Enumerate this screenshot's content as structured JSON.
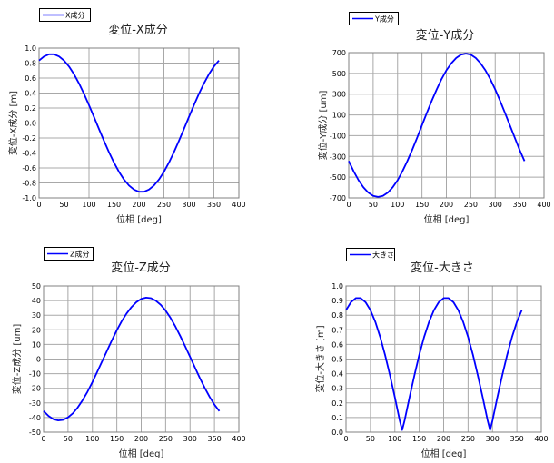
{
  "chart_data": [
    {
      "type": "line",
      "title": "変位-X成分",
      "xlabel": "位相 [deg]",
      "ylabel": "変位-X成分 [m]",
      "xlim": [
        0,
        400
      ],
      "ylim": [
        -1.0,
        1.0
      ],
      "xticks": [
        "0",
        "50",
        "100",
        "150",
        "200",
        "250",
        "300",
        "350",
        "400"
      ],
      "yticks": [
        "1.0",
        "0.8",
        "0.6",
        "0.4",
        "0.2",
        "0.0",
        "-0.2",
        "-0.4",
        "-0.6",
        "-0.8",
        "-1.0"
      ],
      "grid": true,
      "legend_placement": "top-left",
      "series": [
        {
          "name": "X成分",
          "color": "#0000ff",
          "x": [
            0,
            10,
            20,
            30,
            40,
            50,
            60,
            70,
            80,
            90,
            100,
            110,
            120,
            130,
            140,
            150,
            160,
            170,
            180,
            190,
            200,
            210,
            220,
            230,
            240,
            250,
            260,
            270,
            280,
            290,
            300,
            310,
            320,
            330,
            340,
            350,
            360
          ],
          "y": [
            0.834,
            0.889,
            0.917,
            0.917,
            0.889,
            0.834,
            0.754,
            0.651,
            0.528,
            0.389,
            0.238,
            0.08,
            -0.08,
            -0.238,
            -0.389,
            -0.528,
            -0.651,
            -0.754,
            -0.834,
            -0.889,
            -0.917,
            -0.917,
            -0.889,
            -0.834,
            -0.754,
            -0.651,
            -0.528,
            -0.389,
            -0.238,
            -0.08,
            0.08,
            0.238,
            0.389,
            0.528,
            0.651,
            0.754,
            0.834
          ]
        }
      ]
    },
    {
      "type": "line",
      "title": "変位-Y成分",
      "xlabel": "位相 [deg]",
      "ylabel": "変位-Y成分 [um]",
      "xlim": [
        0,
        400
      ],
      "ylim": [
        -700,
        700
      ],
      "xticks": [
        "0",
        "50",
        "100",
        "150",
        "200",
        "250",
        "300",
        "350",
        "400"
      ],
      "yticks": [
        "700",
        "500",
        "300",
        "100",
        "-100",
        "-300",
        "-500",
        "-700"
      ],
      "grid": true,
      "legend_placement": "top-left",
      "series": [
        {
          "name": "Y成分",
          "color": "#0000ff",
          "x": [
            0,
            10,
            20,
            30,
            40,
            50,
            60,
            70,
            80,
            90,
            100,
            110,
            120,
            130,
            140,
            150,
            160,
            170,
            180,
            190,
            200,
            210,
            220,
            230,
            240,
            250,
            260,
            270,
            280,
            290,
            300,
            310,
            320,
            330,
            340,
            350,
            360
          ],
          "y": [
            -345,
            -444,
            -529,
            -598,
            -648,
            -680,
            -690,
            -680,
            -648,
            -598,
            -529,
            -444,
            -345,
            -236,
            -120,
            0,
            120,
            236,
            345,
            444,
            529,
            598,
            648,
            680,
            690,
            680,
            648,
            598,
            529,
            444,
            345,
            236,
            120,
            0,
            -120,
            -236,
            -345
          ]
        }
      ]
    },
    {
      "type": "line",
      "title": "変位-Z成分",
      "xlabel": "位相 [deg]",
      "ylabel": "変位-Z成分 [um]",
      "xlim": [
        0,
        400
      ],
      "ylim": [
        -50,
        50
      ],
      "xticks": [
        "0",
        "50",
        "100",
        "150",
        "200",
        "250",
        "300",
        "350",
        "400"
      ],
      "yticks": [
        "50",
        "40",
        "30",
        "20",
        "10",
        "0",
        "-10",
        "-20",
        "-30",
        "-40",
        "-50"
      ],
      "grid": true,
      "legend_placement": "top-left",
      "series": [
        {
          "name": "Z成分",
          "color": "#0000ff",
          "x": [
            0,
            10,
            20,
            30,
            40,
            50,
            60,
            70,
            80,
            90,
            100,
            110,
            120,
            130,
            140,
            150,
            160,
            170,
            180,
            190,
            200,
            210,
            220,
            230,
            240,
            250,
            260,
            270,
            280,
            290,
            300,
            310,
            320,
            330,
            340,
            350,
            360
          ],
          "y": [
            -35.6,
            -38.9,
            -41.1,
            -42.0,
            -41.6,
            -39.9,
            -37.1,
            -33.1,
            -28.1,
            -22.3,
            -15.7,
            -8.7,
            -1.5,
            5.8,
            13.0,
            19.7,
            25.9,
            31.2,
            35.6,
            38.9,
            41.1,
            42.0,
            41.6,
            39.9,
            37.1,
            33.1,
            28.1,
            22.3,
            15.7,
            8.7,
            1.5,
            -5.8,
            -13.0,
            -19.7,
            -25.9,
            -31.2,
            -35.6
          ]
        }
      ]
    },
    {
      "type": "line",
      "title": "変位-大きさ",
      "xlabel": "位相 [deg]",
      "ylabel": "変位-大きさ [m]",
      "xlim": [
        0,
        400
      ],
      "ylim": [
        0.0,
        1.0
      ],
      "xticks": [
        "0",
        "50",
        "100",
        "150",
        "200",
        "250",
        "300",
        "350",
        "400"
      ],
      "yticks": [
        "1.0",
        "0.9",
        "0.8",
        "0.7",
        "0.6",
        "0.5",
        "0.4",
        "0.3",
        "0.2",
        "0.1",
        "0.0"
      ],
      "grid": true,
      "legend_placement": "top-left",
      "series": [
        {
          "name": "大きさ",
          "color": "#0000ff",
          "x": [
            0,
            10,
            20,
            30,
            40,
            50,
            60,
            70,
            80,
            90,
            100,
            110,
            115,
            120,
            130,
            140,
            150,
            160,
            170,
            180,
            190,
            200,
            210,
            220,
            230,
            240,
            250,
            260,
            270,
            280,
            290,
            295,
            300,
            310,
            320,
            330,
            340,
            350,
            360
          ],
          "y": [
            0.834,
            0.889,
            0.917,
            0.917,
            0.889,
            0.834,
            0.754,
            0.651,
            0.528,
            0.389,
            0.238,
            0.08,
            0.015,
            0.08,
            0.238,
            0.389,
            0.528,
            0.651,
            0.754,
            0.834,
            0.889,
            0.917,
            0.917,
            0.889,
            0.834,
            0.754,
            0.651,
            0.528,
            0.389,
            0.238,
            0.08,
            0.015,
            0.08,
            0.238,
            0.389,
            0.528,
            0.651,
            0.754,
            0.834
          ]
        }
      ]
    }
  ],
  "colors": {
    "grid": "#a8a8a8",
    "frame": "#808080",
    "line": "#0000ff"
  }
}
